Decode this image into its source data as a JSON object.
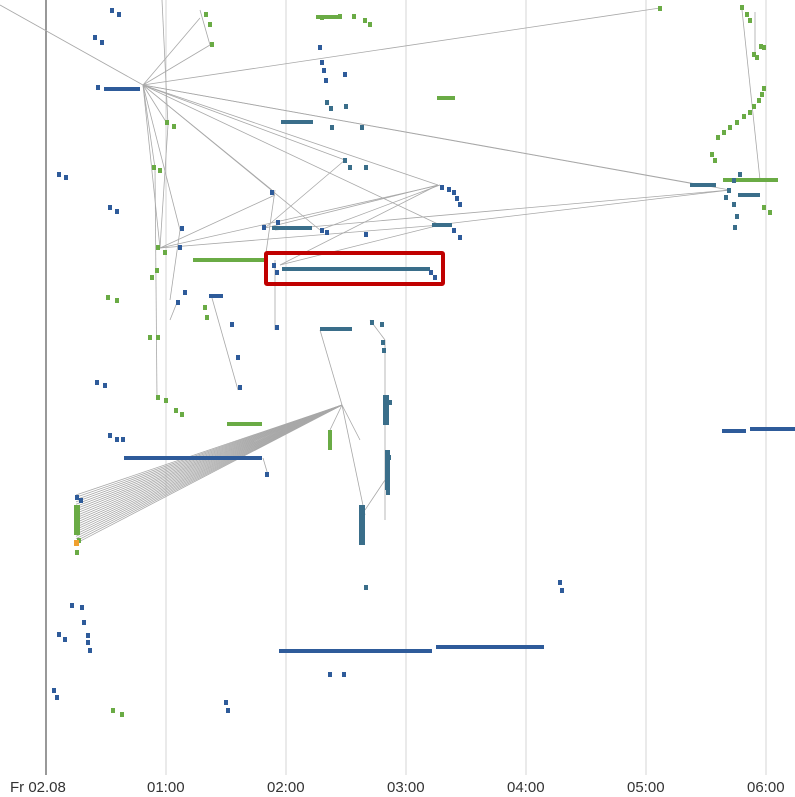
{
  "axis": {
    "ticks": [
      {
        "label": "Fr 02.08",
        "minutes": 0
      },
      {
        "label": "01:00",
        "minutes": 60
      },
      {
        "label": "02:00",
        "minutes": 120
      },
      {
        "label": "03:00",
        "minutes": 180
      },
      {
        "label": "04:00",
        "minutes": 240
      },
      {
        "label": "05:00",
        "minutes": 300
      },
      {
        "label": "06:00",
        "minutes": 360
      }
    ]
  },
  "colors": {
    "background": "#ffffff",
    "gridline": "#d5d5d5",
    "axis_line": "#555555",
    "connector": "#a8a8a8",
    "blue": "#2e5b9a",
    "teal": "#3a6e8a",
    "green": "#6aab45",
    "orange": "#f0a030",
    "highlight": "#c00000"
  }
}
